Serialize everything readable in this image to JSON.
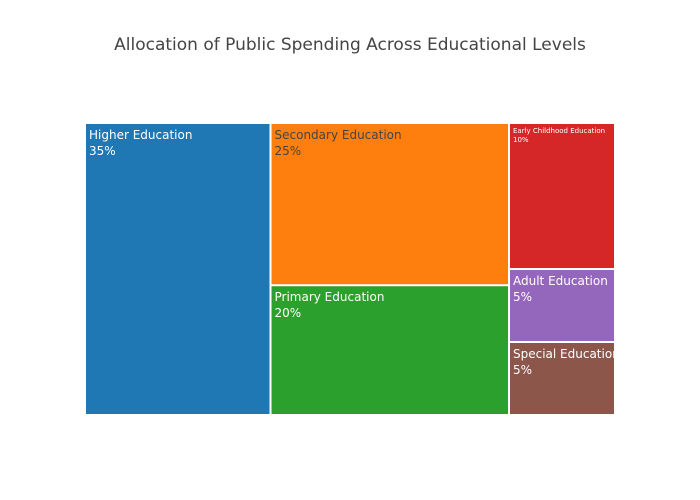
{
  "chart_data": {
    "type": "treemap",
    "title": "Allocation of Public Spending Across Educational Levels",
    "categories": [
      "Higher Education",
      "Secondary Education",
      "Primary Education",
      "Early Childhood Education",
      "Adult Education",
      "Special Education"
    ],
    "values": [
      35,
      25,
      20,
      10,
      5,
      5
    ],
    "value_labels": [
      "35%",
      "25%",
      "20%",
      "10%",
      "5%",
      "5%"
    ],
    "colors": [
      "#1f77b4",
      "#ff7f0e",
      "#2ca02c",
      "#d62728",
      "#9467bd",
      "#8c564b"
    ],
    "label_colors": [
      "#ffffff",
      "#444444",
      "#ffffff",
      "#ffffff",
      "#ffffff",
      "#ffffff"
    ]
  }
}
